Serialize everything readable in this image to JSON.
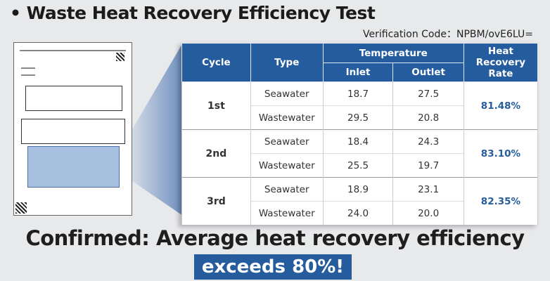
{
  "title": "• Waste Heat Recovery Efficiency Test",
  "verification": "Verification Code：NPBM/ovE6LU=",
  "table": {
    "headers": {
      "cycle": "Cycle",
      "type": "Type",
      "temperature": "Temperature",
      "inlet": "Inlet",
      "outlet": "Outlet",
      "rate": "Heat Recovery Rate"
    },
    "rows": [
      {
        "cycle": "1st",
        "rate": "81.48%",
        "items": [
          {
            "type": "Seawater",
            "inlet": "18.7",
            "outlet": "27.5"
          },
          {
            "type": "Wastewater",
            "inlet": "29.5",
            "outlet": "20.8"
          }
        ]
      },
      {
        "cycle": "2nd",
        "rate": "83.10%",
        "items": [
          {
            "type": "Seawater",
            "inlet": "18.4",
            "outlet": "24.3"
          },
          {
            "type": "Wastewater",
            "inlet": "25.5",
            "outlet": "19.7"
          }
        ]
      },
      {
        "cycle": "3rd",
        "rate": "82.35%",
        "items": [
          {
            "type": "Seawater",
            "inlet": "18.9",
            "outlet": "23.1"
          },
          {
            "type": "Wastewater",
            "inlet": "24.0",
            "outlet": "20.0"
          }
        ]
      }
    ]
  },
  "confirm": "Confirmed: Average heat recovery efficiency",
  "exceeds": "exceeds 80%!"
}
